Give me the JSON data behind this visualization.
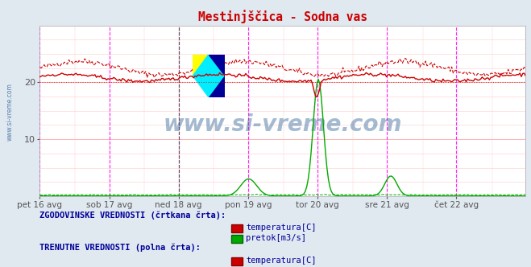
{
  "title": "Mestinjščica - Sodna vas",
  "title_color": "#cc0000",
  "bg_color": "#e0e8f0",
  "plot_bg_color": "#ffffff",
  "ylim": [
    0,
    30
  ],
  "x_labels": [
    "pet 16 avg",
    "sob 17 avg",
    "ned 18 avg",
    "pon 19 avg",
    "tor 20 avg",
    "sre 21 avg",
    "čet 22 avg"
  ],
  "n_points": 336,
  "temp_hist_color": "#cc0000",
  "temp_curr_color": "#cc0000",
  "pretok_hist_color": "#00aa00",
  "pretok_curr_color": "#00aa00",
  "watermark": "www.si-vreme.com",
  "watermark_color": "#336699",
  "legend_hist_label": "ZGODOVINSKE VREDNOSTI (črtkana črta):",
  "legend_curr_label": "TRENUTNE VREDNOSTI (polna črta):",
  "legend_temp": "temperatura[C]",
  "legend_pretok": "pretok[m3/s]",
  "sidebar_text": "www.si-vreme.com",
  "sidebar_color": "#336699",
  "text_color": "#000099"
}
